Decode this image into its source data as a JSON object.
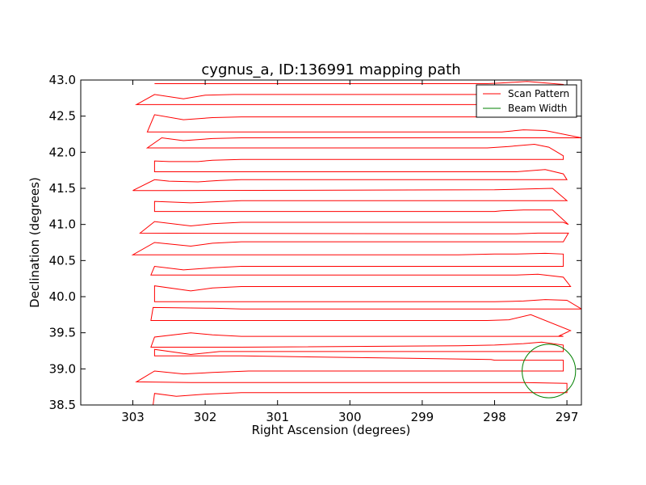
{
  "chart_data": {
    "type": "line",
    "title": "cygnus_a, ID:136991 mapping path",
    "xlabel": "Right Ascension (degrees)",
    "ylabel": "Declination (degrees)",
    "xlim": [
      303.72,
      296.8
    ],
    "ylim": [
      38.5,
      43.0
    ],
    "xticks": [
      303,
      302,
      301,
      300,
      299,
      298,
      297
    ],
    "yticks": [
      38.5,
      39.0,
      39.5,
      40.0,
      40.5,
      41.0,
      41.5,
      42.0,
      42.5,
      43.0
    ],
    "xtick_labels": [
      "303",
      "302",
      "301",
      "300",
      "299",
      "298",
      "297"
    ],
    "ytick_labels": [
      "38.5",
      "39.0",
      "39.5",
      "40.0",
      "40.5",
      "41.0",
      "41.5",
      "42.0",
      "42.5",
      "43.0"
    ],
    "legend": {
      "placement": "top-right",
      "entries": [
        "Scan Pattern",
        "Beam Width"
      ]
    },
    "grid": false,
    "series": [
      {
        "name": "Scan Pattern",
        "color": "#ff0000",
        "points": [
          [
            299.0,
            38.5
          ],
          [
            302.72,
            38.5
          ],
          [
            302.7,
            38.66
          ],
          [
            302.4,
            38.62
          ],
          [
            302.0,
            38.65
          ],
          [
            301.5,
            38.67
          ],
          [
            299.5,
            38.67
          ],
          [
            297.0,
            38.67
          ],
          [
            297.0,
            38.8
          ],
          [
            297.6,
            38.81
          ],
          [
            298.1,
            38.81
          ],
          [
            302.2,
            38.81
          ],
          [
            302.95,
            38.82
          ],
          [
            302.7,
            38.97
          ],
          [
            302.3,
            38.93
          ],
          [
            301.9,
            38.95
          ],
          [
            301.4,
            38.97
          ],
          [
            297.05,
            38.97
          ],
          [
            297.05,
            39.12
          ],
          [
            297.3,
            39.12
          ],
          [
            298.0,
            39.12
          ],
          [
            298.05,
            39.13
          ],
          [
            301.5,
            39.18
          ],
          [
            302.7,
            39.18
          ],
          [
            302.7,
            39.27
          ],
          [
            302.2,
            39.2
          ],
          [
            301.8,
            39.24
          ],
          [
            301.3,
            39.24
          ],
          [
            297.05,
            39.24
          ],
          [
            297.05,
            39.33
          ],
          [
            297.35,
            39.37
          ],
          [
            297.6,
            39.35
          ],
          [
            298.0,
            39.33
          ],
          [
            298.5,
            39.32
          ],
          [
            301.5,
            39.3
          ],
          [
            302.75,
            39.3
          ],
          [
            302.7,
            39.44
          ],
          [
            302.2,
            39.5
          ],
          [
            301.9,
            39.47
          ],
          [
            301.5,
            39.45
          ],
          [
            297.05,
            39.45
          ],
          [
            297.1,
            39.46
          ],
          [
            296.95,
            39.53
          ],
          [
            297.5,
            39.75
          ],
          [
            297.8,
            39.68
          ],
          [
            298.1,
            39.67
          ],
          [
            298.5,
            39.67
          ],
          [
            302.75,
            39.67
          ],
          [
            302.72,
            39.85
          ],
          [
            301.9,
            39.84
          ],
          [
            301.5,
            39.83
          ],
          [
            296.8,
            39.83
          ],
          [
            297.0,
            39.95
          ],
          [
            297.3,
            39.96
          ],
          [
            297.6,
            39.94
          ],
          [
            298.0,
            39.93
          ],
          [
            302.7,
            39.93
          ],
          [
            302.7,
            40.15
          ],
          [
            302.2,
            40.08
          ],
          [
            301.9,
            40.12
          ],
          [
            301.5,
            40.14
          ],
          [
            296.95,
            40.14
          ],
          [
            297.05,
            40.27
          ],
          [
            297.4,
            40.31
          ],
          [
            297.7,
            40.3
          ],
          [
            298.0,
            40.3
          ],
          [
            301.5,
            40.3
          ],
          [
            302.75,
            40.3
          ],
          [
            302.7,
            40.42
          ],
          [
            302.3,
            40.37
          ],
          [
            301.9,
            40.4
          ],
          [
            301.5,
            40.42
          ],
          [
            297.05,
            40.42
          ],
          [
            297.05,
            40.59
          ],
          [
            297.3,
            40.6
          ],
          [
            297.7,
            40.59
          ],
          [
            298.0,
            40.59
          ],
          [
            298.5,
            40.58
          ],
          [
            303.0,
            40.58
          ],
          [
            302.7,
            40.75
          ],
          [
            302.2,
            40.7
          ],
          [
            301.9,
            40.74
          ],
          [
            301.5,
            40.76
          ],
          [
            297.05,
            40.76
          ],
          [
            296.98,
            40.88
          ],
          [
            297.4,
            40.88
          ],
          [
            297.7,
            40.87
          ],
          [
            298.0,
            40.87
          ],
          [
            302.9,
            40.88
          ],
          [
            302.7,
            41.04
          ],
          [
            302.2,
            40.98
          ],
          [
            301.9,
            41.01
          ],
          [
            301.5,
            41.03
          ],
          [
            297.05,
            41.03
          ],
          [
            296.98,
            41.0
          ],
          [
            297.2,
            41.2
          ],
          [
            297.6,
            41.2
          ],
          [
            297.9,
            41.19
          ],
          [
            298.0,
            41.18
          ],
          [
            302.7,
            41.18
          ],
          [
            302.7,
            41.32
          ],
          [
            302.2,
            41.3
          ],
          [
            301.5,
            41.33
          ],
          [
            297.0,
            41.33
          ],
          [
            297.2,
            41.5
          ],
          [
            297.6,
            41.49
          ],
          [
            298.0,
            41.48
          ],
          [
            302.4,
            41.47
          ],
          [
            303.0,
            41.47
          ],
          [
            302.7,
            41.62
          ],
          [
            302.5,
            41.6
          ],
          [
            302.1,
            41.59
          ],
          [
            301.8,
            41.61
          ],
          [
            301.5,
            41.62
          ],
          [
            297.05,
            41.62
          ],
          [
            297.0,
            41.62
          ],
          [
            297.05,
            41.7
          ],
          [
            297.3,
            41.76
          ],
          [
            297.7,
            41.73
          ],
          [
            298.0,
            41.73
          ],
          [
            302.7,
            41.73
          ],
          [
            302.7,
            41.88
          ],
          [
            302.5,
            41.87
          ],
          [
            302.1,
            41.87
          ],
          [
            301.9,
            41.89
          ],
          [
            301.5,
            41.9
          ],
          [
            297.05,
            41.9
          ],
          [
            297.05,
            41.95
          ],
          [
            297.1,
            41.98
          ],
          [
            297.25,
            42.07
          ],
          [
            297.45,
            42.11
          ],
          [
            297.8,
            42.08
          ],
          [
            298.1,
            42.06
          ],
          [
            302.8,
            42.06
          ],
          [
            302.6,
            42.2
          ],
          [
            302.3,
            42.16
          ],
          [
            301.9,
            42.19
          ],
          [
            301.5,
            42.2
          ],
          [
            296.8,
            42.2
          ],
          [
            297.3,
            42.3
          ],
          [
            297.6,
            42.31
          ],
          [
            297.9,
            42.28
          ],
          [
            298.1,
            42.28
          ],
          [
            302.8,
            42.28
          ],
          [
            302.7,
            42.52
          ],
          [
            302.3,
            42.45
          ],
          [
            301.9,
            42.48
          ],
          [
            301.5,
            42.49
          ],
          [
            297.05,
            42.49
          ],
          [
            297.05,
            42.55
          ],
          [
            297.4,
            42.63
          ],
          [
            297.8,
            42.66
          ],
          [
            298.0,
            42.66
          ],
          [
            302.95,
            42.66
          ],
          [
            302.7,
            42.8
          ],
          [
            302.3,
            42.74
          ],
          [
            302.0,
            42.79
          ],
          [
            301.6,
            42.8
          ],
          [
            297.05,
            42.8
          ],
          [
            297.05,
            42.94
          ],
          [
            297.3,
            42.96
          ],
          [
            297.55,
            42.98
          ],
          [
            297.9,
            42.96
          ],
          [
            298.1,
            42.95
          ],
          [
            302.7,
            42.95
          ]
        ]
      },
      {
        "name": "Beam Width",
        "color": "#008000",
        "circle": {
          "center": [
            297.25,
            38.97
          ],
          "radius": 0.37
        }
      }
    ]
  }
}
